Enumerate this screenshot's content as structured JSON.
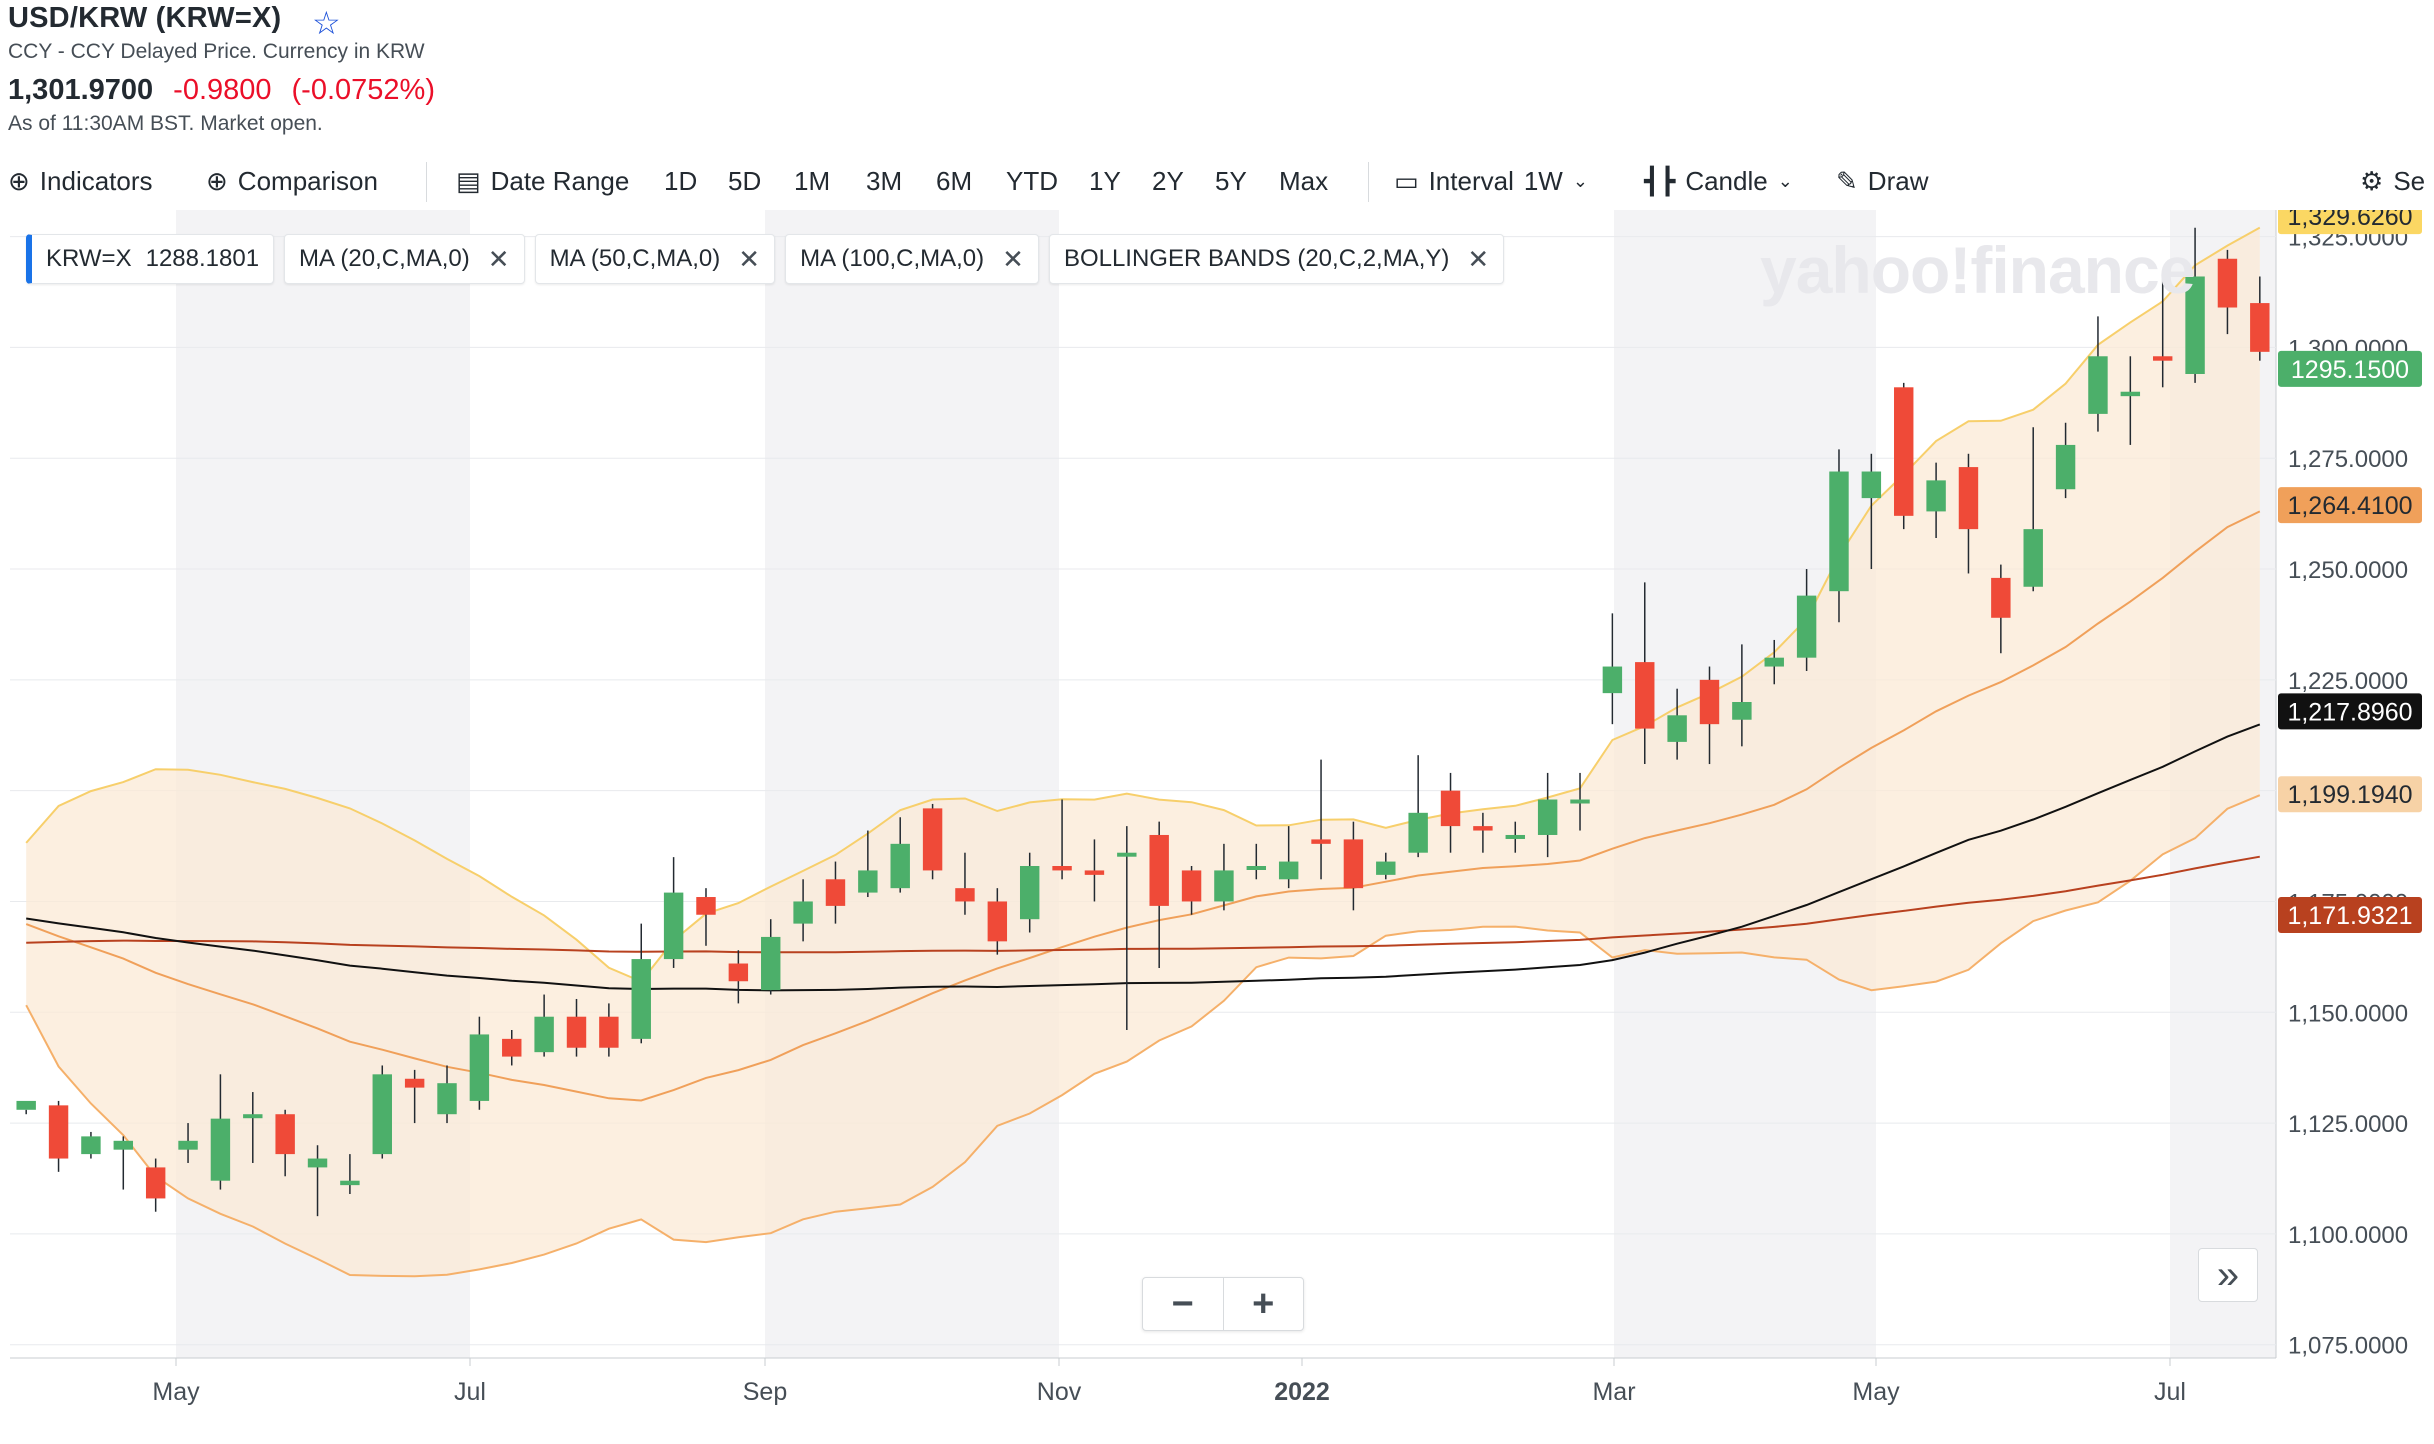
{
  "header": {
    "title": "USD/KRW (KRW=X)",
    "subtitle": "CCY - CCY Delayed Price. Currency in KRW",
    "price": "1,301.9700",
    "change": "-0.9800",
    "change_pct": "(-0.0752%)",
    "as_of": "As of 11:30AM BST. Market open."
  },
  "toolbar": {
    "indicators": "Indicators",
    "comparison": "Comparison",
    "date_range": "Date Range",
    "ranges": [
      "1D",
      "5D",
      "1M",
      "3M",
      "6M",
      "YTD",
      "1Y",
      "2Y",
      "5Y",
      "Max"
    ],
    "interval_label": "Interval",
    "interval_value": "1W",
    "chart_type": "Candle",
    "draw": "Draw",
    "settings": "Se"
  },
  "legend": {
    "symbol": "KRW=X",
    "symbol_value": "1288.1801",
    "ma20": "MA (20,C,MA,0)",
    "ma50": "MA (50,C,MA,0)",
    "ma100": "MA (100,C,MA,0)",
    "bb": "BOLLINGER BANDS (20,C,2,MA,Y)"
  },
  "watermark": "yahoo!finance",
  "colors": {
    "up": "#4caf6a",
    "down": "#ef4a38",
    "ma20": "#f0a05a",
    "ma50": "#111111",
    "ma100": "#b8411f",
    "bb": "#f7cf6b",
    "bbfill": "#fbe9d6"
  },
  "chart_data": {
    "type": "candlestick",
    "x_tick_labels": [
      "May",
      "Jul",
      "Sep",
      "Nov",
      "2022",
      "Mar",
      "May",
      "Jul"
    ],
    "y_tick_labels": [
      "1,075.0000",
      "1,100.0000",
      "1,125.0000",
      "1,150.0000",
      "1,175.0000",
      "1,200.0000",
      "1,225.0000",
      "1,250.0000",
      "1,275.0000",
      "1,300.0000",
      "1,325.0000"
    ],
    "ylim": [
      1072,
      1331
    ],
    "price_tags": [
      {
        "label": "1,329.6260",
        "value": 1329.626,
        "bg": "#fbd763",
        "fg": "#232a31"
      },
      {
        "label": "1295.1500",
        "value": 1295.15,
        "bg": "#4caf6a",
        "fg": "#ffffff"
      },
      {
        "label": "1,264.4100",
        "value": 1264.41,
        "bg": "#f0a05a",
        "fg": "#232a31"
      },
      {
        "label": "1,217.8960",
        "value": 1217.896,
        "bg": "#111111",
        "fg": "#ffffff"
      },
      {
        "label": "1,199.1940",
        "value": 1199.194,
        "bg": "#f7d2a6",
        "fg": "#232a31"
      },
      {
        "label": "1,171.9321",
        "value": 1171.9321,
        "bg": "#b8411f",
        "fg": "#ffffff"
      }
    ],
    "candles": [
      [
        1128,
        1130,
        1127,
        1128
      ],
      [
        1129,
        1117,
        1130,
        1114
      ],
      [
        1118,
        1122,
        1123,
        1117
      ],
      [
        1119,
        1121,
        1122,
        1110
      ],
      [
        1115,
        1108,
        1117,
        1105
      ],
      [
        1119,
        1121,
        1125,
        1116
      ],
      [
        1112,
        1126,
        1136,
        1110
      ],
      [
        1127,
        1127,
        1132,
        1116
      ],
      [
        1127,
        1118,
        1128,
        1113
      ],
      [
        1115,
        1117,
        1120,
        1104
      ],
      [
        1111,
        1112,
        1118,
        1109
      ],
      [
        1118,
        1136,
        1138,
        1117
      ],
      [
        1135,
        1133,
        1137,
        1125
      ],
      [
        1127,
        1134,
        1138,
        1125
      ],
      [
        1130,
        1145,
        1149,
        1128
      ],
      [
        1144,
        1140,
        1146,
        1138
      ],
      [
        1141,
        1149,
        1154,
        1140
      ],
      [
        1149,
        1142,
        1153,
        1140
      ],
      [
        1149,
        1142,
        1152,
        1140
      ],
      [
        1144,
        1162,
        1170,
        1143
      ],
      [
        1162,
        1177,
        1185,
        1160
      ],
      [
        1176,
        1172,
        1178,
        1165
      ],
      [
        1161,
        1157,
        1164,
        1152
      ],
      [
        1155,
        1167,
        1171,
        1154
      ],
      [
        1170,
        1175,
        1180,
        1166
      ],
      [
        1180,
        1174,
        1184,
        1170
      ],
      [
        1177,
        1182,
        1191,
        1176
      ],
      [
        1178,
        1188,
        1194,
        1177
      ],
      [
        1196,
        1182,
        1197,
        1180
      ],
      [
        1178,
        1175,
        1186,
        1172
      ],
      [
        1175,
        1166,
        1178,
        1163
      ],
      [
        1171,
        1183,
        1186,
        1168
      ],
      [
        1183,
        1182,
        1198,
        1180
      ],
      [
        1182,
        1181,
        1189,
        1175
      ],
      [
        1186,
        1186,
        1192,
        1146
      ],
      [
        1190,
        1174,
        1193,
        1160
      ],
      [
        1182,
        1175,
        1183,
        1172
      ],
      [
        1175,
        1182,
        1188,
        1173
      ],
      [
        1183,
        1183,
        1188,
        1180
      ],
      [
        1180,
        1184,
        1192,
        1178
      ],
      [
        1189,
        1188,
        1207,
        1180
      ],
      [
        1189,
        1178,
        1193,
        1173
      ],
      [
        1181,
        1184,
        1186,
        1180
      ],
      [
        1186,
        1195,
        1208,
        1185
      ],
      [
        1200,
        1192,
        1204,
        1186
      ],
      [
        1192,
        1191,
        1195,
        1186
      ],
      [
        1190,
        1190,
        1193,
        1186
      ],
      [
        1190,
        1198,
        1204,
        1185
      ],
      [
        1198,
        1198,
        1204,
        1191
      ],
      [
        1222,
        1228,
        1240,
        1215
      ],
      [
        1229,
        1214,
        1247,
        1206
      ],
      [
        1211,
        1217,
        1223,
        1207
      ],
      [
        1225,
        1215,
        1228,
        1206
      ],
      [
        1216,
        1220,
        1233,
        1210
      ],
      [
        1228,
        1230,
        1234,
        1224
      ],
      [
        1230,
        1244,
        1250,
        1227
      ],
      [
        1245,
        1272,
        1277,
        1238
      ],
      [
        1266,
        1272,
        1276,
        1250
      ],
      [
        1291,
        1262,
        1292,
        1259
      ],
      [
        1263,
        1270,
        1274,
        1257
      ],
      [
        1273,
        1259,
        1276,
        1249
      ],
      [
        1248,
        1239,
        1251,
        1231
      ],
      [
        1246,
        1259,
        1282,
        1245
      ],
      [
        1268,
        1278,
        1283,
        1266
      ],
      [
        1285,
        1298,
        1307,
        1281
      ],
      [
        1289,
        1290,
        1298,
        1278
      ],
      [
        1298,
        1297,
        1317,
        1291
      ],
      [
        1294,
        1316,
        1327,
        1292
      ],
      [
        1320,
        1309,
        1322,
        1303
      ],
      [
        1310,
        1299,
        1316,
        1297
      ]
    ]
  }
}
